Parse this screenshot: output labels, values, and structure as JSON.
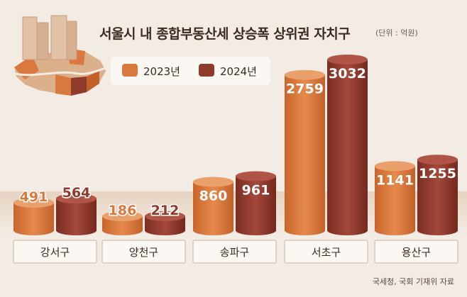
{
  "chart_data": {
    "type": "bar",
    "title": "서울시 내 종합부동산세 상승폭 상위권 자치구",
    "unit": "(단위 : 억원)",
    "categories": [
      "강서구",
      "양천구",
      "송파구",
      "서초구",
      "용산구"
    ],
    "series": [
      {
        "name": "2023년",
        "values": [
          491,
          186,
          860,
          2759,
          1141
        ],
        "color": "#d9793e"
      },
      {
        "name": "2024년",
        "values": [
          564,
          212,
          961,
          3032,
          1255
        ],
        "color": "#8f3a2b"
      }
    ],
    "source": "국세청, 국회 기재위 자료",
    "legend_position": "top",
    "grid": false
  }
}
